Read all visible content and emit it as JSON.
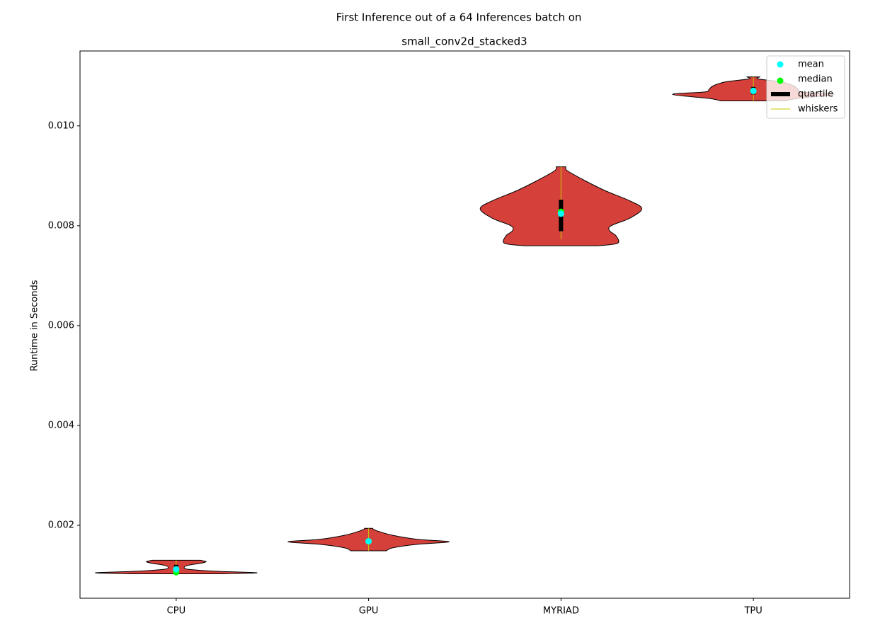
{
  "chart_data": {
    "type": "violin",
    "title": "First Inference out of a 64 Inferences batch on",
    "subtitle": "small_conv2d_stacked3",
    "ylabel": "Runtime in Seconds",
    "categories": [
      "CPU",
      "GPU",
      "MYRIAD",
      "TPU"
    ],
    "ylim": [
      0.00054,
      0.0115
    ],
    "yticks": [
      0.002,
      0.004,
      0.006,
      0.008,
      {
        "value": 0.01,
        "label": "0.010"
      }
    ],
    "violin_color": "#d5403a",
    "legend_position": "upper right",
    "legend": [
      {
        "name": "mean",
        "color": "#00ffff"
      },
      {
        "name": "median",
        "color": "#00ff00"
      },
      {
        "name": "quartile",
        "color": "#000000"
      },
      {
        "name": "whiskers",
        "color": "#c8c800"
      }
    ],
    "violins": [
      {
        "density_y": [
          0.00103,
          0.00105,
          0.00108,
          0.00112,
          0.00116,
          0.0012,
          0.00124,
          0.00127,
          0.00129,
          0.0013
        ],
        "density": [
          0.6,
          1.0,
          0.5,
          0.15,
          0.1,
          0.15,
          0.3,
          0.37,
          0.33,
          0.3
        ],
        "mean": 0.00112,
        "median": 0.00106,
        "quartiles": [
          0.00106,
          0.00121
        ],
        "whiskers": [
          0.00103,
          0.0013
        ]
      },
      {
        "density_y": [
          0.00149,
          0.00155,
          0.00162,
          0.00167,
          0.00172,
          0.0018,
          0.00188,
          0.00192,
          0.00194
        ],
        "density": [
          0.22,
          0.3,
          0.6,
          1.0,
          0.6,
          0.3,
          0.12,
          0.06,
          0.05
        ],
        "mean": 0.00168,
        "median": 0.00168,
        "quartiles": [
          0.00165,
          0.0017
        ],
        "whiskers": [
          0.00149,
          0.00194
        ]
      },
      {
        "density_y": [
          0.0076,
          0.00765,
          0.0078,
          0.0079,
          0.008,
          0.00815,
          0.00834,
          0.0085,
          0.0087,
          0.0089,
          0.0091,
          0.00918
        ],
        "density": [
          0.46,
          0.7,
          0.68,
          0.6,
          0.62,
          0.85,
          1.0,
          0.85,
          0.55,
          0.3,
          0.08,
          0.06
        ],
        "mean": 0.00824,
        "median": 0.00828,
        "quartiles": [
          0.00789,
          0.00852
        ],
        "whiskers": [
          0.00773,
          0.00918
        ]
      },
      {
        "density_y": [
          0.0105,
          0.01055,
          0.01063,
          0.01068,
          0.01073,
          0.0108,
          0.01088,
          0.01094,
          0.01098
        ],
        "density": [
          0.4,
          0.55,
          1.0,
          0.6,
          0.55,
          0.5,
          0.35,
          0.06,
          0.08
        ],
        "mean": 0.0107,
        "median": 0.0107,
        "quartiles": [
          0.01063,
          0.01078
        ],
        "whiskers": [
          0.0105,
          0.01098
        ]
      }
    ]
  }
}
